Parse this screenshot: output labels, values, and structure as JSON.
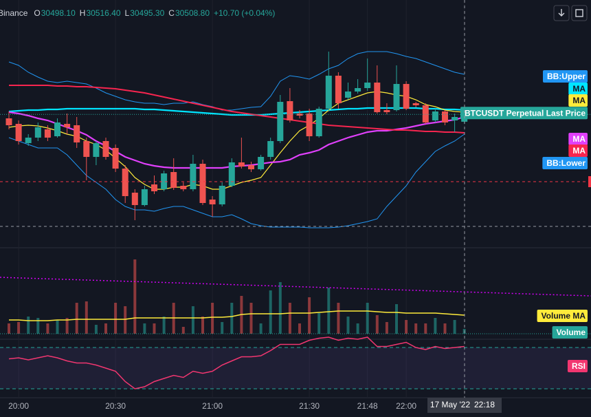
{
  "header": {
    "exchange": "Binance",
    "ohlc": [
      {
        "key": "O",
        "value": "30498.10"
      },
      {
        "key": "H",
        "value": "30516.40"
      },
      {
        "key": "L",
        "value": "30495.30"
      },
      {
        "key": "C",
        "value": "30508.80"
      }
    ],
    "change": "+10.70 (+0.04%)"
  },
  "chart_data": [
    {
      "type": "candlestick",
      "name": "BTCUSDT Perpetual Last Price",
      "up_color": "#26a69a",
      "down_color": "#ef5350",
      "crosshair_date": "17 May '22",
      "categories": [
        null,
        "20:00",
        null,
        null,
        null,
        null,
        null,
        null,
        null,
        null,
        null,
        "20:30",
        null,
        null,
        null,
        null,
        null,
        null,
        null,
        null,
        null,
        "21:00",
        null,
        null,
        null,
        null,
        null,
        null,
        null,
        null,
        null,
        "21:30",
        null,
        null,
        null,
        null,
        null,
        "21:48",
        null,
        null,
        null,
        "22:00",
        null,
        null,
        null,
        null,
        null,
        "22:18"
      ],
      "open": [
        30503,
        30495,
        30467,
        30475,
        30487,
        30477,
        30495,
        30493,
        30470,
        30447,
        30470,
        30460,
        30430,
        30395,
        30377,
        30407,
        30400,
        30425,
        30405,
        30400,
        30437,
        30385,
        30378,
        30405,
        30439,
        30435,
        30429,
        30447,
        30470,
        30528,
        30510,
        30510,
        30477,
        30517,
        30565,
        30533,
        30542,
        30547,
        30555,
        30515,
        30515,
        30553,
        30525,
        30522,
        30500,
        30513,
        30500,
        30498.1
      ],
      "high": [
        30513,
        30500,
        30480,
        30497,
        30493,
        30503,
        30510,
        30505,
        30475,
        30470,
        30475,
        30465,
        30435,
        30400,
        30405,
        30420,
        30427,
        30445,
        30410,
        30450,
        30443,
        30390,
        30410,
        30445,
        30475,
        30440,
        30450,
        30475,
        30537,
        30547,
        30515,
        30517,
        30520,
        30600,
        30570,
        30555,
        30560,
        30590,
        30580,
        30525,
        30580,
        30557,
        30527,
        30525,
        30517,
        30515,
        30510,
        30516.4
      ],
      "low": [
        30487,
        30465,
        30463,
        30470,
        30470,
        30475,
        30480,
        30460,
        30413,
        30435,
        30443,
        30425,
        30380,
        30355,
        30375,
        30393,
        30397,
        30399,
        30397,
        30397,
        30377,
        30360,
        30375,
        30403,
        30430,
        30425,
        30427,
        30443,
        30467,
        30497,
        30503,
        30470,
        30475,
        30513,
        30517,
        30530,
        30539,
        30543,
        30510,
        30509,
        30513,
        30515,
        30519,
        30495,
        30497,
        30493,
        30483,
        30495.3
      ],
      "close": [
        30493,
        30470,
        30475,
        30490,
        30475,
        30497,
        30490,
        30468,
        30447,
        30467,
        30447,
        30430,
        30390,
        30377,
        30400,
        30397,
        30423,
        30402,
        30400,
        30437,
        30380,
        30378,
        30405,
        30439,
        30433,
        30429,
        30447,
        30470,
        30527,
        30500,
        30507,
        30477,
        30517,
        30565,
        30525,
        30542,
        30547,
        30555,
        30512,
        30512,
        30553,
        30517,
        30522,
        30497,
        30513,
        30497,
        30505,
        30508.8
      ],
      "ylim": [
        30330,
        30675
      ],
      "series": [
        {
          "name": "BB:Upper",
          "color": "#2196f3",
          "values": [
            30585,
            30580,
            30570,
            30563,
            30557,
            30555,
            30557,
            30555,
            30553,
            30547,
            30540,
            30535,
            30530,
            30527,
            30525,
            30525,
            30523,
            30525,
            30525,
            30527,
            30523,
            30520,
            30515,
            30515,
            30517,
            30519,
            30520,
            30535,
            30557,
            30565,
            30563,
            30560,
            30567,
            30575,
            30580,
            30590,
            30597,
            30600,
            30600,
            30600,
            30597,
            30593,
            30590,
            30585,
            30580,
            30575,
            30570,
            30567
          ]
        },
        {
          "name": "MA",
          "color": "#00e5ff",
          "values": [
            30513,
            30514,
            30515,
            30515,
            30516,
            30516,
            30517,
            30517,
            30517,
            30517,
            30517,
            30517,
            30517,
            30517,
            30516,
            30516,
            30515,
            30514,
            30513,
            30512,
            30511,
            30510,
            30509,
            30508,
            30508,
            30508,
            30508,
            30509,
            30510,
            30511,
            30512,
            30513,
            30514,
            30515,
            30516,
            30517,
            30517,
            30518,
            30518,
            30518,
            30518,
            30518,
            30518,
            30517,
            30517,
            30516,
            30516,
            30515
          ]
        },
        {
          "name": "MA",
          "color": "#ffeb3b",
          "values": [
            30490,
            30492,
            30493,
            30492,
            30489,
            30485,
            30480,
            30477,
            30470,
            30465,
            30457,
            30445,
            30433,
            30417,
            30407,
            30400,
            30400,
            30403,
            30403,
            30407,
            30405,
            30400,
            30400,
            30405,
            30410,
            30413,
            30417,
            30435,
            30453,
            30470,
            30485,
            30493,
            30503,
            30515,
            30525,
            30530,
            30535,
            30540,
            30542,
            30540,
            30537,
            30535,
            30530,
            30523,
            30520,
            30515,
            30513,
            30512
          ]
        },
        {
          "name": "MA",
          "color": "#e040fb",
          "values": [
            30512,
            30510,
            30507,
            30503,
            30500,
            30495,
            30490,
            30485,
            30479,
            30470,
            30463,
            30455,
            30447,
            30442,
            30437,
            30434,
            30432,
            30431,
            30431,
            30431,
            30431,
            30431,
            30431,
            30433,
            30434,
            30435,
            30437,
            30439,
            30440,
            30443,
            30450,
            30453,
            30457,
            30465,
            30470,
            30475,
            30479,
            30483,
            30485,
            30485,
            30487,
            30489,
            30492,
            30495,
            30497,
            30499,
            30501,
            30505
          ]
        },
        {
          "name": "MA",
          "color": "#f7254f",
          "values": [
            30551,
            30551,
            30551,
            30551,
            30551,
            30550,
            30550,
            30549,
            30549,
            30548,
            30547,
            30546,
            30544,
            30542,
            30540,
            30537,
            30534,
            30531,
            30528,
            30525,
            30522,
            30519,
            30516,
            30513,
            30511,
            30509,
            30507,
            30505,
            30503,
            30501,
            30499,
            30497,
            30495,
            30493,
            30492,
            30491,
            30490,
            30489,
            30488,
            30487,
            30486,
            30486,
            30485,
            30484,
            30484,
            30483,
            30483,
            30482
          ]
        },
        {
          "name": "BB:Lower",
          "color": "#2196f3",
          "values": [
            30475,
            30470,
            30465,
            30460,
            30460,
            30460,
            30450,
            30435,
            30420,
            30410,
            30400,
            30385,
            30375,
            30370,
            30370,
            30368,
            30372,
            30375,
            30375,
            30370,
            30365,
            30360,
            30360,
            30363,
            30357,
            30350,
            30347,
            30345,
            30345,
            30345,
            30345,
            30344,
            30344,
            30344,
            30345,
            30347,
            30350,
            30353,
            30357,
            30375,
            30390,
            30405,
            30425,
            30440,
            30455,
            30463,
            30470,
            30480
          ]
        }
      ]
    },
    {
      "type": "bar",
      "ylim": [
        0,
        120
      ],
      "series": [
        {
          "name": "Volume",
          "color": "#26a69a",
          "values": [
            15,
            17,
            25,
            23,
            15,
            20,
            23,
            45,
            47,
            13,
            15,
            45,
            40,
            108,
            15,
            15,
            25,
            45,
            10,
            40,
            25,
            45,
            17,
            45,
            55,
            45,
            15,
            63,
            75,
            45,
            15,
            53,
            30,
            67,
            45,
            25,
            15,
            45,
            27,
            17,
            43,
            20,
            15,
            15,
            23,
            15,
            20,
            7
          ]
        },
        {
          "name": "Volume MA",
          "type": "line",
          "color": "#ffeb3b",
          "values": [
            20,
            20,
            19,
            19,
            19,
            20,
            20,
            21,
            21,
            21,
            21,
            21,
            21,
            23,
            23,
            23,
            23,
            23,
            23,
            23,
            23,
            24,
            24,
            25,
            28,
            29,
            29,
            29,
            29,
            30,
            30,
            30,
            31,
            32,
            33,
            33,
            33,
            33,
            32,
            31,
            31,
            30,
            30,
            30,
            30,
            29,
            28,
            27
          ]
        }
      ]
    },
    {
      "type": "line",
      "ylim": [
        20,
        80
      ],
      "hlines": [
        70,
        30
      ],
      "series": [
        {
          "name": "RSI",
          "color": "#f23670",
          "values": [
            59,
            60,
            58,
            60,
            62,
            60,
            57,
            55,
            55,
            53,
            50,
            47,
            37,
            30,
            32,
            37,
            40,
            43,
            41,
            47,
            45,
            47,
            53,
            57,
            61,
            61,
            62,
            67,
            73,
            73,
            73,
            77,
            79,
            80,
            77,
            79,
            78,
            80,
            71,
            71,
            73,
            75,
            70,
            68,
            71,
            69,
            70,
            71
          ]
        }
      ]
    }
  ]
}
